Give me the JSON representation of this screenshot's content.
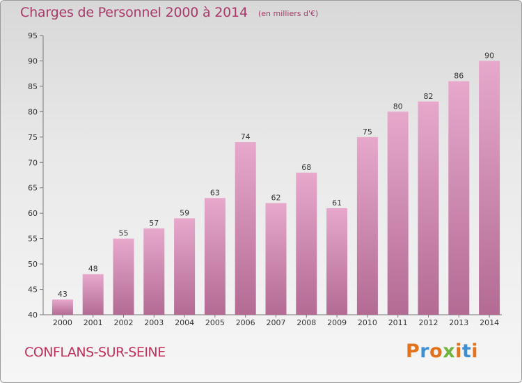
{
  "header": {
    "title": "Charges de Personnel 2000 à 2014",
    "subtitle": "(en milliers d'€)"
  },
  "footer": {
    "commune": "CONFLANS-SUR-SEINE",
    "logo": {
      "letters": [
        "P",
        "r",
        "o",
        "x",
        "i",
        "t",
        "i"
      ]
    }
  },
  "colors": {
    "bar_light": "#e7a8cc",
    "bar_dark": "#b36b94",
    "title": "#a8386a",
    "commune": "#c0305a",
    "logo": [
      "#e2731c",
      "#3c8fd2",
      "#e2731c",
      "#6eb43f",
      "#e2731c",
      "#3c8fd2",
      "#e2731c"
    ]
  },
  "chart_data": {
    "type": "bar",
    "title": "Charges de Personnel 2000 à 2014",
    "subtitle": "(en milliers d'€)",
    "categories": [
      "2000",
      "2001",
      "2002",
      "2003",
      "2004",
      "2005",
      "2006",
      "2007",
      "2008",
      "2009",
      "2010",
      "2011",
      "2012",
      "2013",
      "2014"
    ],
    "values": [
      43,
      48,
      55,
      57,
      59,
      63,
      74,
      62,
      68,
      61,
      75,
      80,
      82,
      86,
      90
    ],
    "ylim": [
      40,
      95
    ],
    "yticks": [
      40,
      45,
      50,
      55,
      60,
      65,
      70,
      75,
      80,
      85,
      90,
      95
    ],
    "grid": false,
    "data_labels": true
  }
}
